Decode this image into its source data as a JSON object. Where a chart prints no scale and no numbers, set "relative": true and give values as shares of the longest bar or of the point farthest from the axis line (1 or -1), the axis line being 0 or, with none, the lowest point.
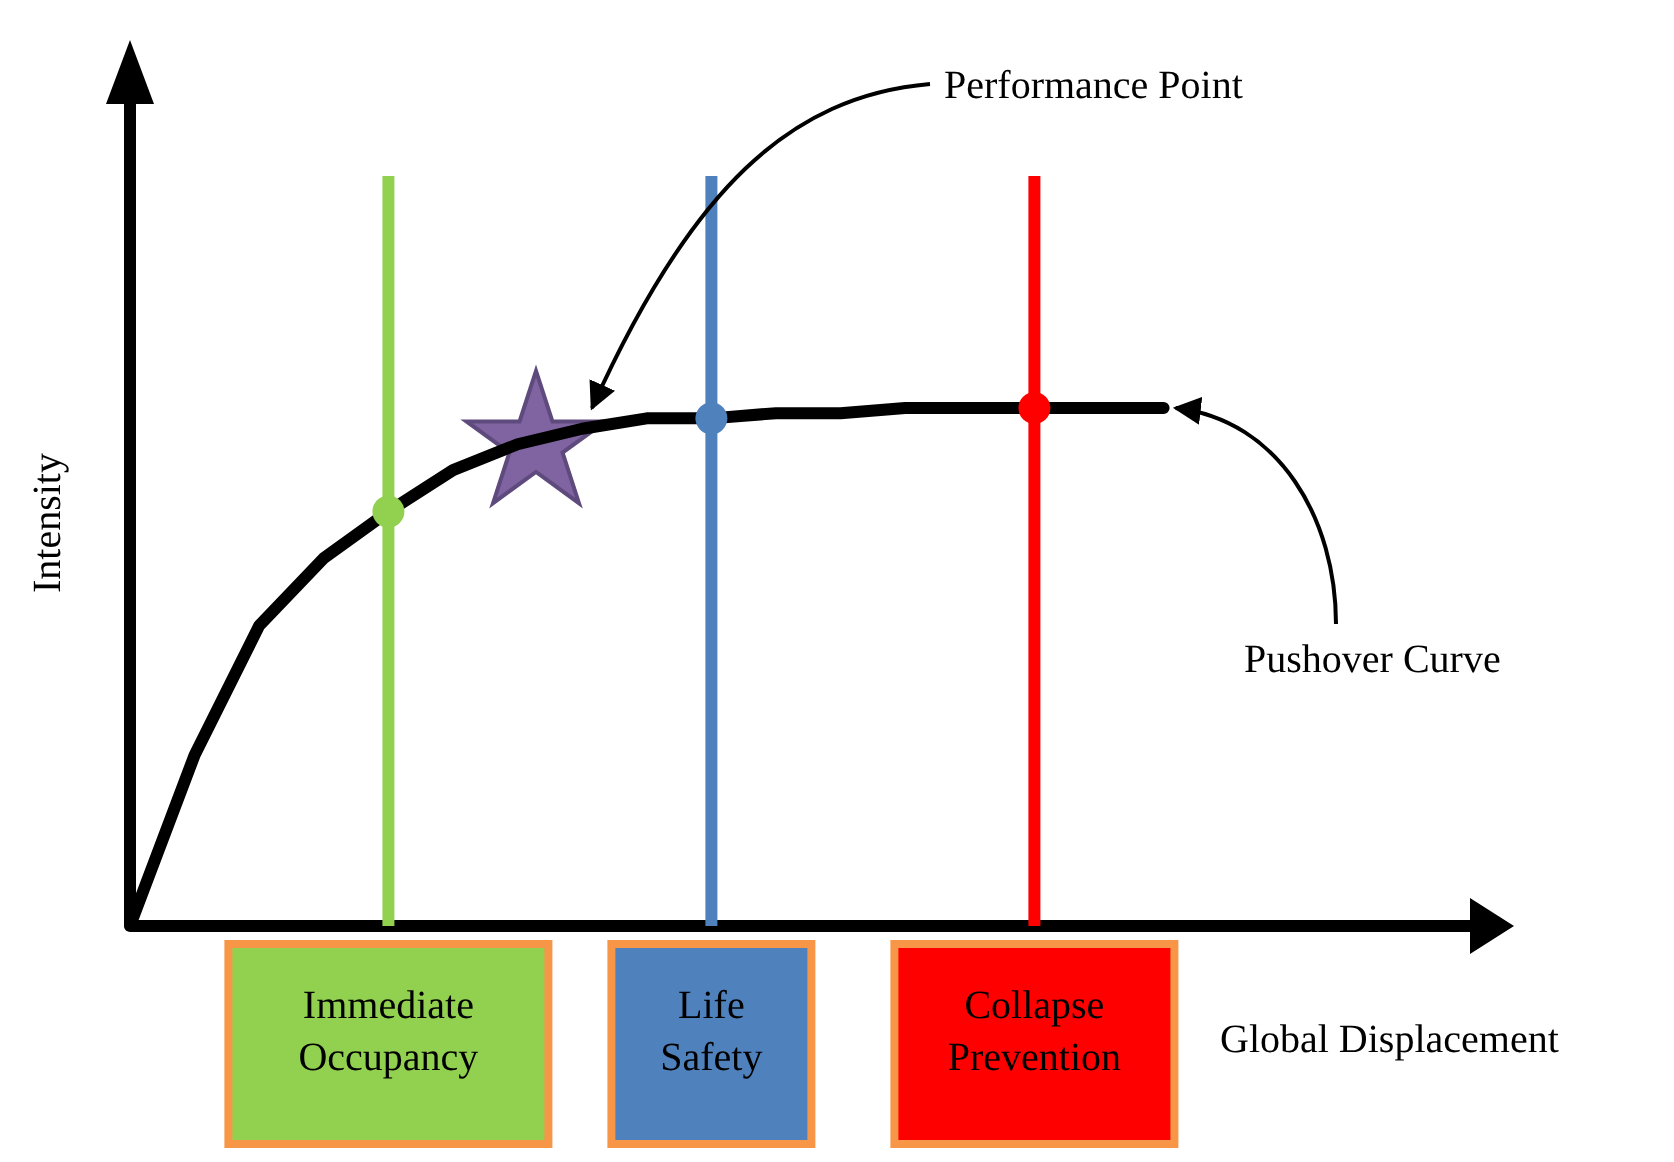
{
  "chart_data": {
    "type": "line",
    "relative": true,
    "xlabel": "Global Displacement",
    "ylabel": "Intensity",
    "categories": [
      null,
      null,
      null,
      null,
      null,
      null,
      null,
      null,
      null,
      null,
      null,
      null,
      null,
      null,
      null,
      null,
      null
    ],
    "series": [
      {
        "color": "#000000",
        "values": [
          0,
          0.33,
          0.58,
          0.71,
          0.8,
          0.88,
          0.93,
          0.96,
          0.98,
          0.98,
          0.99,
          0.99,
          1,
          1,
          1,
          1,
          1
        ]
      }
    ],
    "marker": "none",
    "line_style": "solid",
    "annotations": [
      "Performance Point",
      "Pushover Curve",
      "Immediate Occupancy",
      "Life Safety",
      "Collapse Prevention"
    ]
  }
}
